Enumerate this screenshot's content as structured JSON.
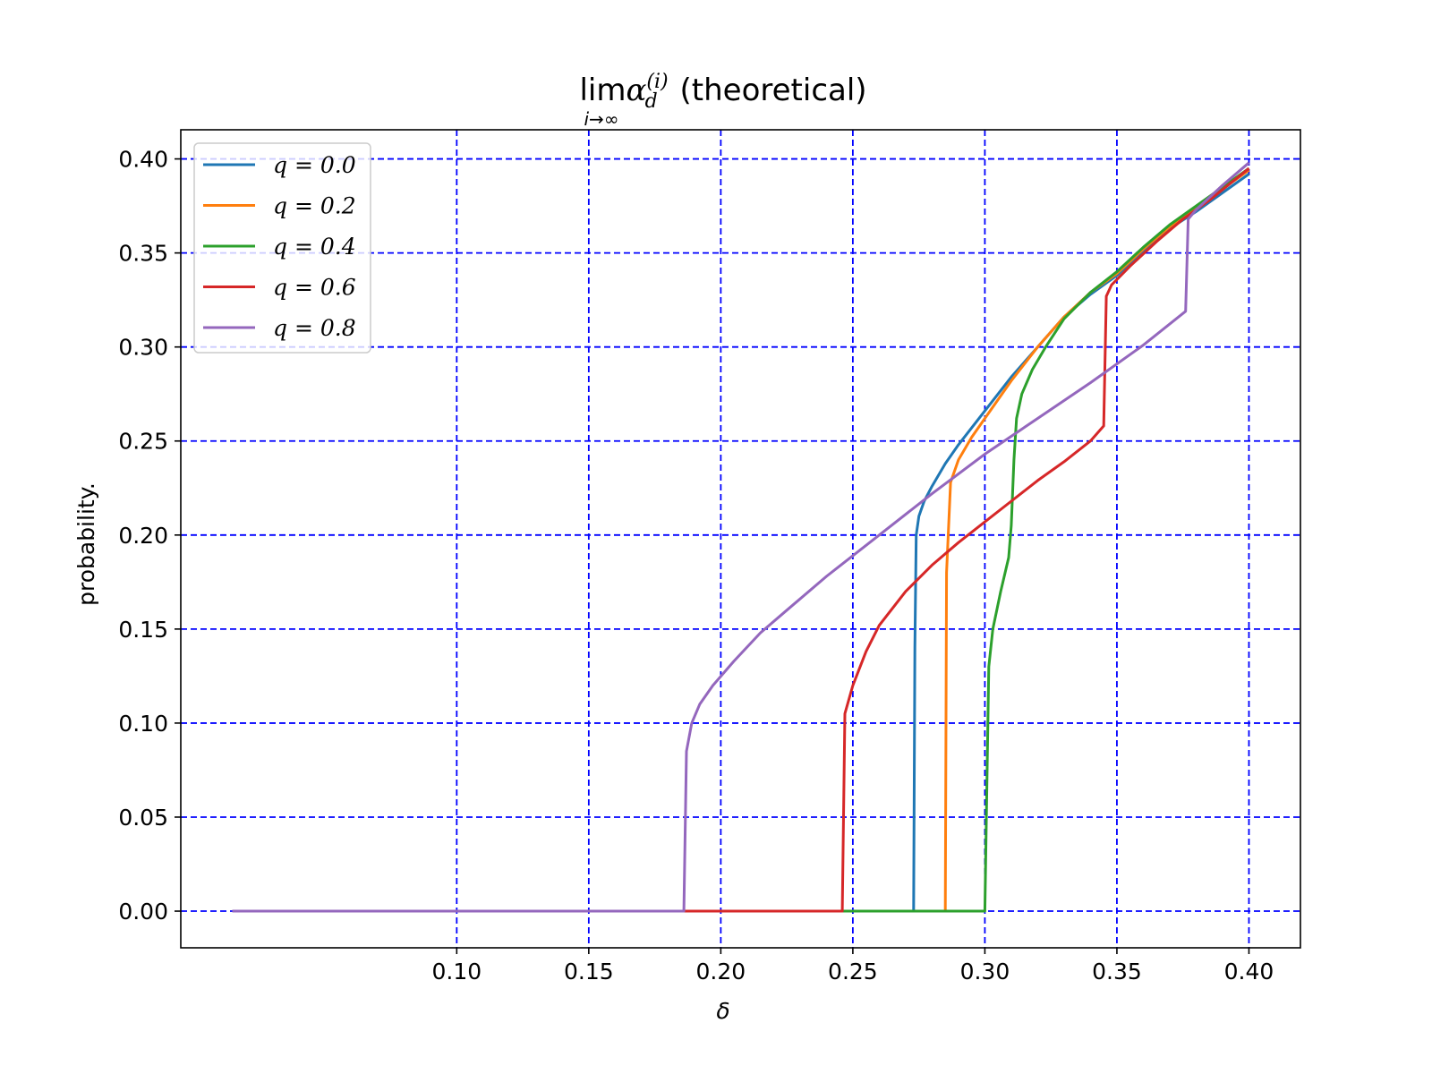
{
  "chart_data": {
    "type": "line",
    "title": {
      "main": "lim",
      "alpha": "α",
      "alpha_sup": "(i)",
      "alpha_sub": "d",
      "limit_sub": "i→∞",
      "suffix": " (theoretical)"
    },
    "xlabel": "δ",
    "ylabel": "probability.",
    "xlim": [
      -0.0045,
      0.4195
    ],
    "ylim": [
      -0.0195,
      0.4155
    ],
    "xticks": [
      0.1,
      0.15,
      0.2,
      0.25,
      0.3,
      0.35,
      0.4
    ],
    "xtick_labels": [
      "0.10",
      "0.15",
      "0.20",
      "0.25",
      "0.30",
      "0.35",
      "0.40"
    ],
    "yticks": [
      0.0,
      0.05,
      0.1,
      0.15,
      0.2,
      0.25,
      0.3,
      0.35,
      0.4
    ],
    "ytick_labels": [
      "0.00",
      "0.05",
      "0.10",
      "0.15",
      "0.20",
      "0.25",
      "0.30",
      "0.35",
      "0.40"
    ],
    "grid": true,
    "grid_color": "#0000ff",
    "legend_position": "upper-left",
    "series": [
      {
        "name": "q = 0.0",
        "legend_label": "q = 0.0",
        "color": "#1f77b4",
        "points": [
          [
            0.015,
            0
          ],
          [
            0.273,
            0
          ],
          [
            0.2735,
            0.14
          ],
          [
            0.274,
            0.2
          ],
          [
            0.275,
            0.21
          ],
          [
            0.277,
            0.218
          ],
          [
            0.28,
            0.226
          ],
          [
            0.285,
            0.238
          ],
          [
            0.29,
            0.248
          ],
          [
            0.3,
            0.266
          ],
          [
            0.31,
            0.284
          ],
          [
            0.32,
            0.3
          ],
          [
            0.33,
            0.316
          ],
          [
            0.34,
            0.328
          ],
          [
            0.35,
            0.338
          ],
          [
            0.36,
            0.351
          ],
          [
            0.37,
            0.363
          ],
          [
            0.38,
            0.372
          ],
          [
            0.39,
            0.382
          ],
          [
            0.4,
            0.392
          ]
        ]
      },
      {
        "name": "q = 0.2",
        "legend_label": "q = 0.2",
        "color": "#ff7f0e",
        "points": [
          [
            0.015,
            0
          ],
          [
            0.285,
            0
          ],
          [
            0.2855,
            0.18
          ],
          [
            0.287,
            0.228
          ],
          [
            0.29,
            0.24
          ],
          [
            0.295,
            0.252
          ],
          [
            0.3,
            0.262
          ],
          [
            0.31,
            0.282
          ],
          [
            0.32,
            0.3
          ],
          [
            0.33,
            0.316
          ],
          [
            0.34,
            0.329
          ],
          [
            0.35,
            0.339
          ],
          [
            0.36,
            0.352
          ],
          [
            0.37,
            0.364
          ],
          [
            0.38,
            0.374
          ],
          [
            0.39,
            0.384
          ],
          [
            0.4,
            0.394
          ]
        ]
      },
      {
        "name": "q = 0.4",
        "legend_label": "q = 0.4",
        "color": "#2ca02c",
        "points": [
          [
            0.015,
            0
          ],
          [
            0.3,
            0
          ],
          [
            0.3015,
            0.13
          ],
          [
            0.303,
            0.15
          ],
          [
            0.306,
            0.17
          ],
          [
            0.309,
            0.188
          ],
          [
            0.31,
            0.205
          ],
          [
            0.311,
            0.24
          ],
          [
            0.312,
            0.262
          ],
          [
            0.314,
            0.275
          ],
          [
            0.318,
            0.288
          ],
          [
            0.323,
            0.3
          ],
          [
            0.33,
            0.315
          ],
          [
            0.34,
            0.329
          ],
          [
            0.35,
            0.34
          ],
          [
            0.36,
            0.353
          ],
          [
            0.37,
            0.365
          ],
          [
            0.38,
            0.375
          ],
          [
            0.39,
            0.385
          ],
          [
            0.4,
            0.395
          ]
        ]
      },
      {
        "name": "q = 0.6",
        "legend_label": "q = 0.6",
        "color": "#d62728",
        "points": [
          [
            0.015,
            0
          ],
          [
            0.246,
            0
          ],
          [
            0.247,
            0.105
          ],
          [
            0.25,
            0.12
          ],
          [
            0.255,
            0.138
          ],
          [
            0.26,
            0.152
          ],
          [
            0.27,
            0.17
          ],
          [
            0.28,
            0.184
          ],
          [
            0.29,
            0.196
          ],
          [
            0.3,
            0.207
          ],
          [
            0.31,
            0.218
          ],
          [
            0.32,
            0.229
          ],
          [
            0.33,
            0.239
          ],
          [
            0.34,
            0.25
          ],
          [
            0.345,
            0.258
          ],
          [
            0.346,
            0.327
          ],
          [
            0.348,
            0.333
          ],
          [
            0.355,
            0.343
          ],
          [
            0.365,
            0.356
          ],
          [
            0.375,
            0.368
          ],
          [
            0.385,
            0.378
          ],
          [
            0.4,
            0.395
          ]
        ]
      },
      {
        "name": "q = 0.8",
        "legend_label": "q = 0.8",
        "color": "#9467bd",
        "points": [
          [
            0.015,
            0
          ],
          [
            0.186,
            0
          ],
          [
            0.187,
            0.085
          ],
          [
            0.189,
            0.1
          ],
          [
            0.192,
            0.11
          ],
          [
            0.197,
            0.12
          ],
          [
            0.205,
            0.133
          ],
          [
            0.215,
            0.148
          ],
          [
            0.225,
            0.16
          ],
          [
            0.24,
            0.178
          ],
          [
            0.26,
            0.2
          ],
          [
            0.28,
            0.222
          ],
          [
            0.3,
            0.243
          ],
          [
            0.32,
            0.262
          ],
          [
            0.34,
            0.281
          ],
          [
            0.36,
            0.301
          ],
          [
            0.376,
            0.319
          ],
          [
            0.377,
            0.368
          ],
          [
            0.38,
            0.373
          ],
          [
            0.39,
            0.386
          ],
          [
            0.4,
            0.398
          ]
        ]
      }
    ]
  }
}
